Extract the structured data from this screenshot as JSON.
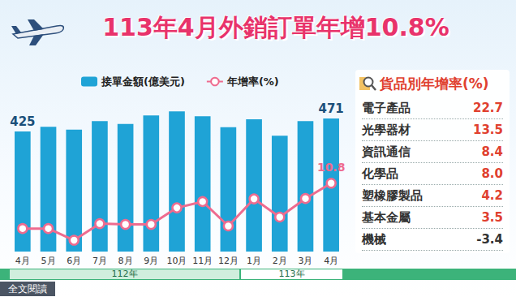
{
  "title": "113年4月外銷訂單年增10.8%",
  "chart_data": {
    "type": "bar",
    "categories": [
      "4月",
      "5月",
      "6月",
      "7月",
      "8月",
      "9月",
      "10月",
      "11月",
      "12月",
      "1月",
      "2月",
      "3月",
      "4月"
    ],
    "series": [
      {
        "name": "接單金額(億美元)",
        "type": "bar",
        "color": "#1fa3d6",
        "values": [
          425,
          442,
          432,
          462,
          452,
          482,
          496,
          479,
          440,
          468,
          410,
          462,
          471
        ],
        "value_labels": [
          "425",
          null,
          null,
          null,
          null,
          null,
          null,
          null,
          null,
          null,
          null,
          null,
          "471"
        ]
      },
      {
        "name": "年增率(%)",
        "type": "line",
        "axis": "y2",
        "color": "#ee6b8f",
        "marker": "circle",
        "values": [
          -17.6,
          -17.6,
          -24.9,
          -14.5,
          -15.0,
          -15.0,
          -4.6,
          -0.7,
          -16.0,
          1.0,
          -10.4,
          1.2,
          10.8
        ],
        "value_labels": [
          null,
          null,
          null,
          null,
          null,
          null,
          null,
          null,
          null,
          null,
          null,
          null,
          "10.8"
        ]
      }
    ],
    "ylim": [
      0,
      520
    ],
    "y2lim": [
      -32,
      60
    ],
    "tick_labels": "x",
    "legend": "top",
    "grid": false
  },
  "year_bands": [
    {
      "label": "112年",
      "months": 9
    },
    {
      "label": "113年",
      "months": 4
    }
  ],
  "table": {
    "title": "貨品別年增率(%)",
    "rows": [
      [
        "電子產品",
        "22.7"
      ],
      [
        "光學器材",
        "13.5"
      ],
      [
        "資訊通信",
        "8.4"
      ],
      [
        "化學品",
        "8.0"
      ],
      [
        "塑橡膠製品",
        "4.2"
      ],
      [
        "基本金屬",
        "3.5"
      ],
      [
        "機械",
        "-3.4"
      ]
    ]
  },
  "link": "全文閱讀"
}
